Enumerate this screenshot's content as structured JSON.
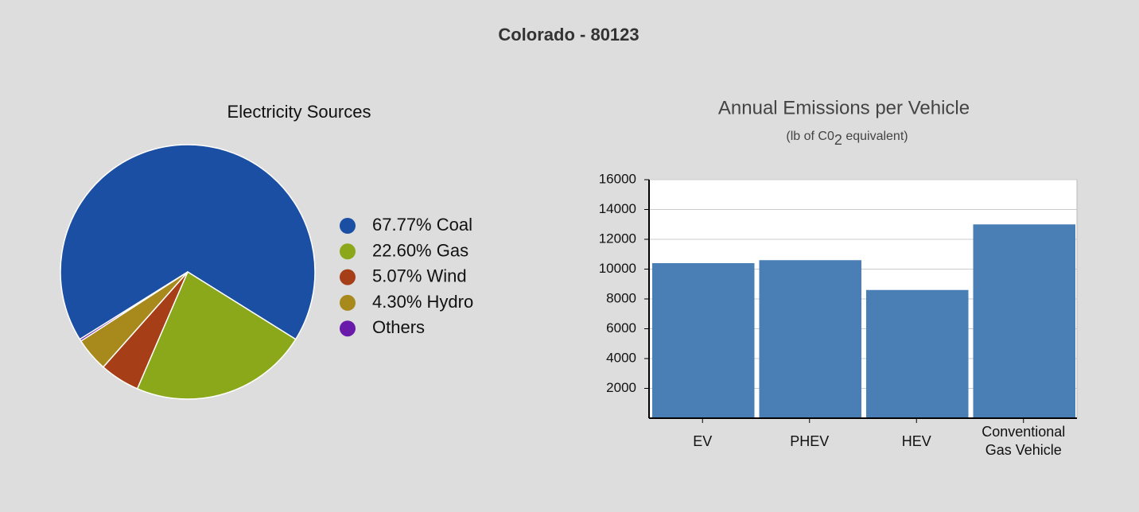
{
  "title": "Colorado - 80123",
  "chart_data": [
    {
      "type": "pie",
      "title": "Electricity Sources",
      "categories": [
        "Coal",
        "Gas",
        "Wind",
        "Hydro",
        "Others"
      ],
      "values": [
        67.77,
        22.6,
        5.07,
        4.3,
        0.26
      ],
      "value_labels": [
        "67.77%",
        "22.60%",
        "5.07%",
        "4.30%",
        null
      ],
      "colors": [
        "#1a4fa3",
        "#8aa81a",
        "#a63f17",
        "#a88a1c",
        "#6a1aaa"
      ],
      "legend": "right"
    },
    {
      "type": "bar",
      "title": "Annual Emissions per Vehicle",
      "subtitle": [
        "(lb of C0",
        "2",
        " equivalent)"
      ],
      "categories": [
        "EV",
        "PHEV",
        "HEV",
        "Conventional Gas Vehicle"
      ],
      "values": [
        10400,
        10600,
        8600,
        13000
      ],
      "color": "#4a7fb5",
      "ylim": [
        0,
        16000
      ],
      "yticks": [
        2000,
        4000,
        6000,
        8000,
        10000,
        12000,
        14000,
        16000
      ],
      "grid": true
    }
  ]
}
